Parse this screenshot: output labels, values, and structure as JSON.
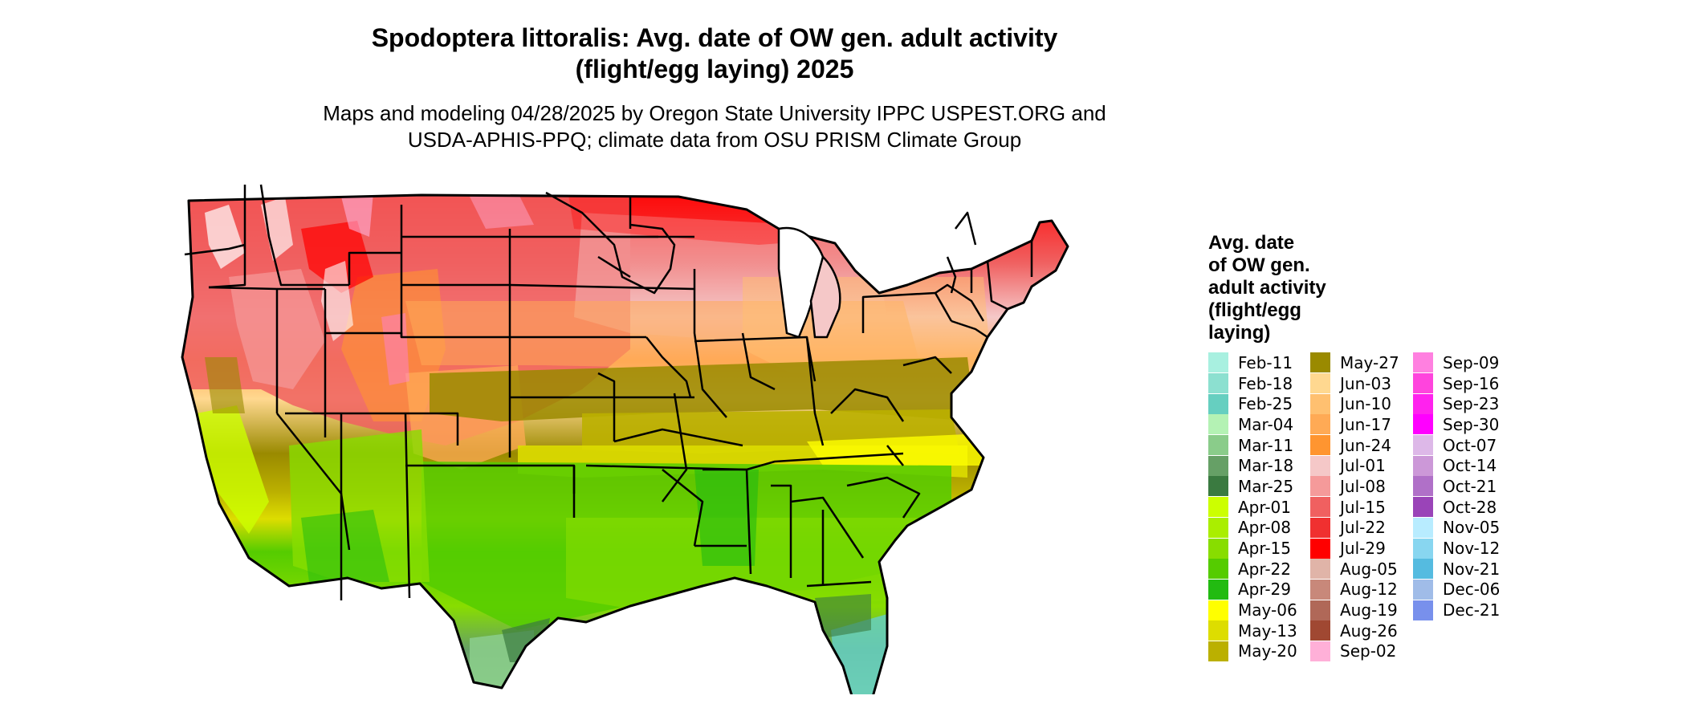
{
  "title": {
    "line1": "Spodoptera littoralis: Avg. date of OW gen. adult activity",
    "line2": "(flight/egg laying) 2025"
  },
  "subtitle": {
    "line1": "Maps and modeling 04/28/2025 by Oregon State University IPPC USPEST.ORG and",
    "line2": "USDA-APHIS-PPQ; climate data from OSU PRISM Climate Group"
  },
  "legend": {
    "title_lines": [
      "Avg. date",
      "of OW gen.",
      "adult activity",
      "(flight/egg",
      "laying)"
    ],
    "columns": [
      [
        {
          "label": "Feb-11",
          "color": "#a8f0e0"
        },
        {
          "label": "Feb-18",
          "color": "#8ce0d0"
        },
        {
          "label": "Feb-25",
          "color": "#66cfc0"
        },
        {
          "label": "Mar-04",
          "color": "#b4f2b4"
        },
        {
          "label": "Mar-11",
          "color": "#8acc8a"
        },
        {
          "label": "Mar-18",
          "color": "#66a066"
        },
        {
          "label": "Mar-25",
          "color": "#3a7a40"
        },
        {
          "label": "Apr-01",
          "color": "#ccff00"
        },
        {
          "label": "Apr-08",
          "color": "#aaee00"
        },
        {
          "label": "Apr-15",
          "color": "#88dd00"
        },
        {
          "label": "Apr-22",
          "color": "#55cc00"
        },
        {
          "label": "Apr-29",
          "color": "#22bb11"
        },
        {
          "label": "May-06",
          "color": "#ffff00"
        },
        {
          "label": "May-13",
          "color": "#dddd00"
        },
        {
          "label": "May-20",
          "color": "#bbb000"
        }
      ],
      [
        {
          "label": "May-27",
          "color": "#9a8a00"
        },
        {
          "label": "Jun-03",
          "color": "#ffd890"
        },
        {
          "label": "Jun-10",
          "color": "#ffc070"
        },
        {
          "label": "Jun-17",
          "color": "#ffaa55"
        },
        {
          "label": "Jun-24",
          "color": "#ff9530"
        },
        {
          "label": "Jul-01",
          "color": "#f5c8c8"
        },
        {
          "label": "Jul-08",
          "color": "#f59a9a"
        },
        {
          "label": "Jul-15",
          "color": "#f06060"
        },
        {
          "label": "Jul-22",
          "color": "#f03030"
        },
        {
          "label": "Jul-29",
          "color": "#ff0000"
        },
        {
          "label": "Aug-05",
          "color": "#e0b4a8"
        },
        {
          "label": "Aug-12",
          "color": "#c8887a"
        },
        {
          "label": "Aug-19",
          "color": "#b06858"
        },
        {
          "label": "Aug-26",
          "color": "#a04832"
        },
        {
          "label": "Sep-02",
          "color": "#ffb0d8"
        }
      ],
      [
        {
          "label": "Sep-09",
          "color": "#ff80e0"
        },
        {
          "label": "Sep-16",
          "color": "#ff44dd"
        },
        {
          "label": "Sep-23",
          "color": "#ff22ee"
        },
        {
          "label": "Sep-30",
          "color": "#ff00ff"
        },
        {
          "label": "Oct-07",
          "color": "#ddb8e8"
        },
        {
          "label": "Oct-14",
          "color": "#cc98d8"
        },
        {
          "label": "Oct-21",
          "color": "#b070c8"
        },
        {
          "label": "Oct-28",
          "color": "#9a44b8"
        },
        {
          "label": "Nov-05",
          "color": "#b8ecff"
        },
        {
          "label": "Nov-12",
          "color": "#88d6f0"
        },
        {
          "label": "Nov-21",
          "color": "#55bbe0"
        },
        {
          "label": "Dec-06",
          "color": "#a0bce8"
        },
        {
          "label": "Dec-21",
          "color": "#7890ec"
        }
      ]
    ]
  }
}
